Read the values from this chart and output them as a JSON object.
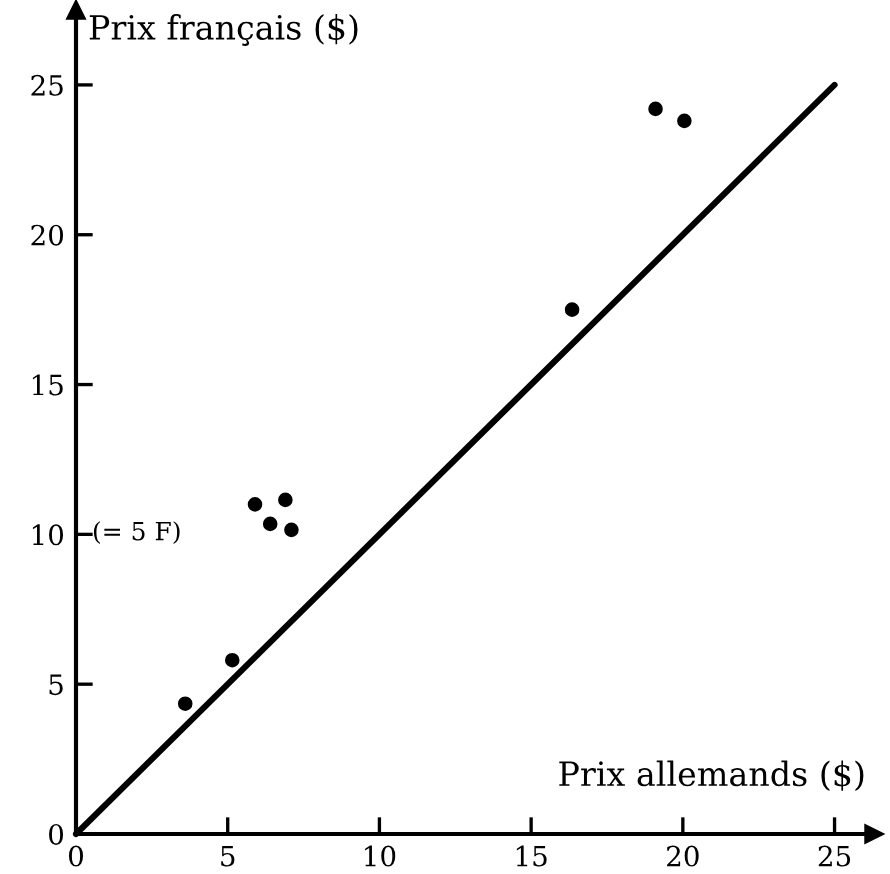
{
  "chart_data": {
    "type": "scatter",
    "xlabel": "Prix allemands ($)",
    "ylabel": "Prix français ($)",
    "series": [
      {
        "marker": "circle",
        "color": "#000000",
        "x": [
          3.6,
          5.15,
          5.9,
          6.4,
          6.9,
          7.1,
          16.35,
          19.1,
          20.05
        ],
        "values": [
          4.35,
          5.8,
          11.0,
          10.35,
          11.15,
          10.15,
          17.5,
          24.2,
          23.8
        ]
      },
      {
        "type": "line",
        "color": "#000000",
        "x": [
          0,
          25
        ],
        "values": [
          0,
          25
        ]
      }
    ],
    "annotations": [
      "(= 5 F)"
    ],
    "xlim": [
      0,
      26.3
    ],
    "ylim": [
      0,
      27.5
    ],
    "xticks": [
      0,
      5,
      10,
      15,
      20,
      25
    ],
    "yticks": [
      0,
      5,
      10,
      15,
      20,
      25
    ],
    "grid": false,
    "legend": false
  }
}
